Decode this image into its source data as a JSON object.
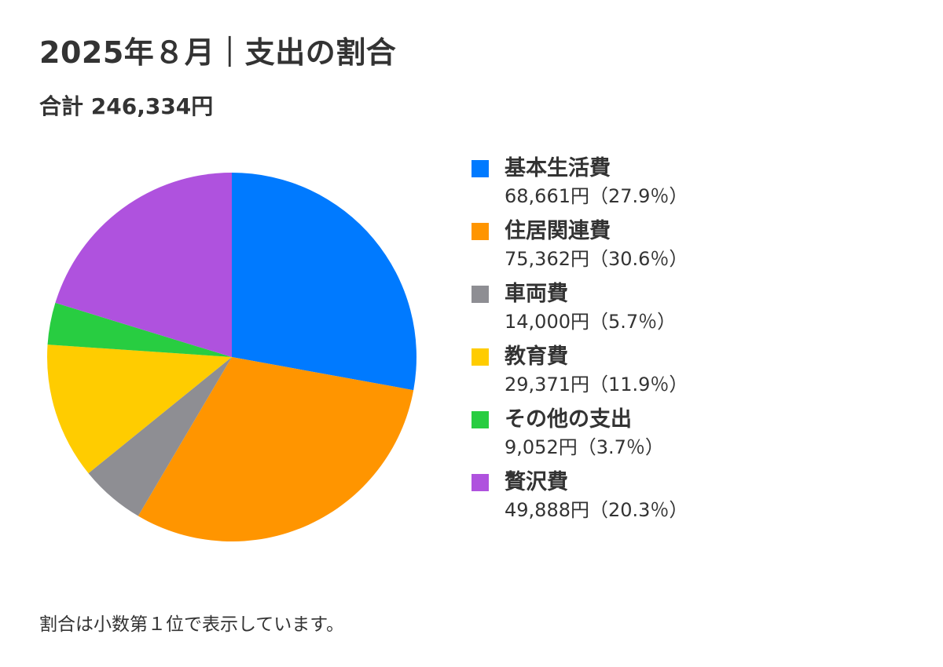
{
  "title": "2025年８月｜支出の割合",
  "total_label": "合計 246,334円",
  "footnote": "割合は小数第１位で表示しています。",
  "chart_data": {
    "type": "pie",
    "title": "2025年８月｜支出の割合",
    "total": 246334,
    "legend_position": "right",
    "slices": [
      {
        "name": "基本生活費",
        "value": 68661,
        "percent": 27.9,
        "color": "#007AFF",
        "value_label": "68,661円（27.9％）"
      },
      {
        "name": "住居関連費",
        "value": 75362,
        "percent": 30.6,
        "color": "#FF9500",
        "value_label": "75,362円（30.6％）"
      },
      {
        "name": "車両費",
        "value": 14000,
        "percent": 5.7,
        "color": "#8E8E93",
        "value_label": "14,000円（5.7％）"
      },
      {
        "name": "教育費",
        "value": 29371,
        "percent": 11.9,
        "color": "#FFCC00",
        "value_label": "29,371円（11.9％）"
      },
      {
        "name": "その他の支出",
        "value": 9052,
        "percent": 3.7,
        "color": "#28CD41",
        "value_label": "9,052円（3.7％）"
      },
      {
        "name": "贅沢費",
        "value": 49888,
        "percent": 20.3,
        "color": "#AF52DE",
        "value_label": "49,888円（20.3％）"
      }
    ]
  }
}
